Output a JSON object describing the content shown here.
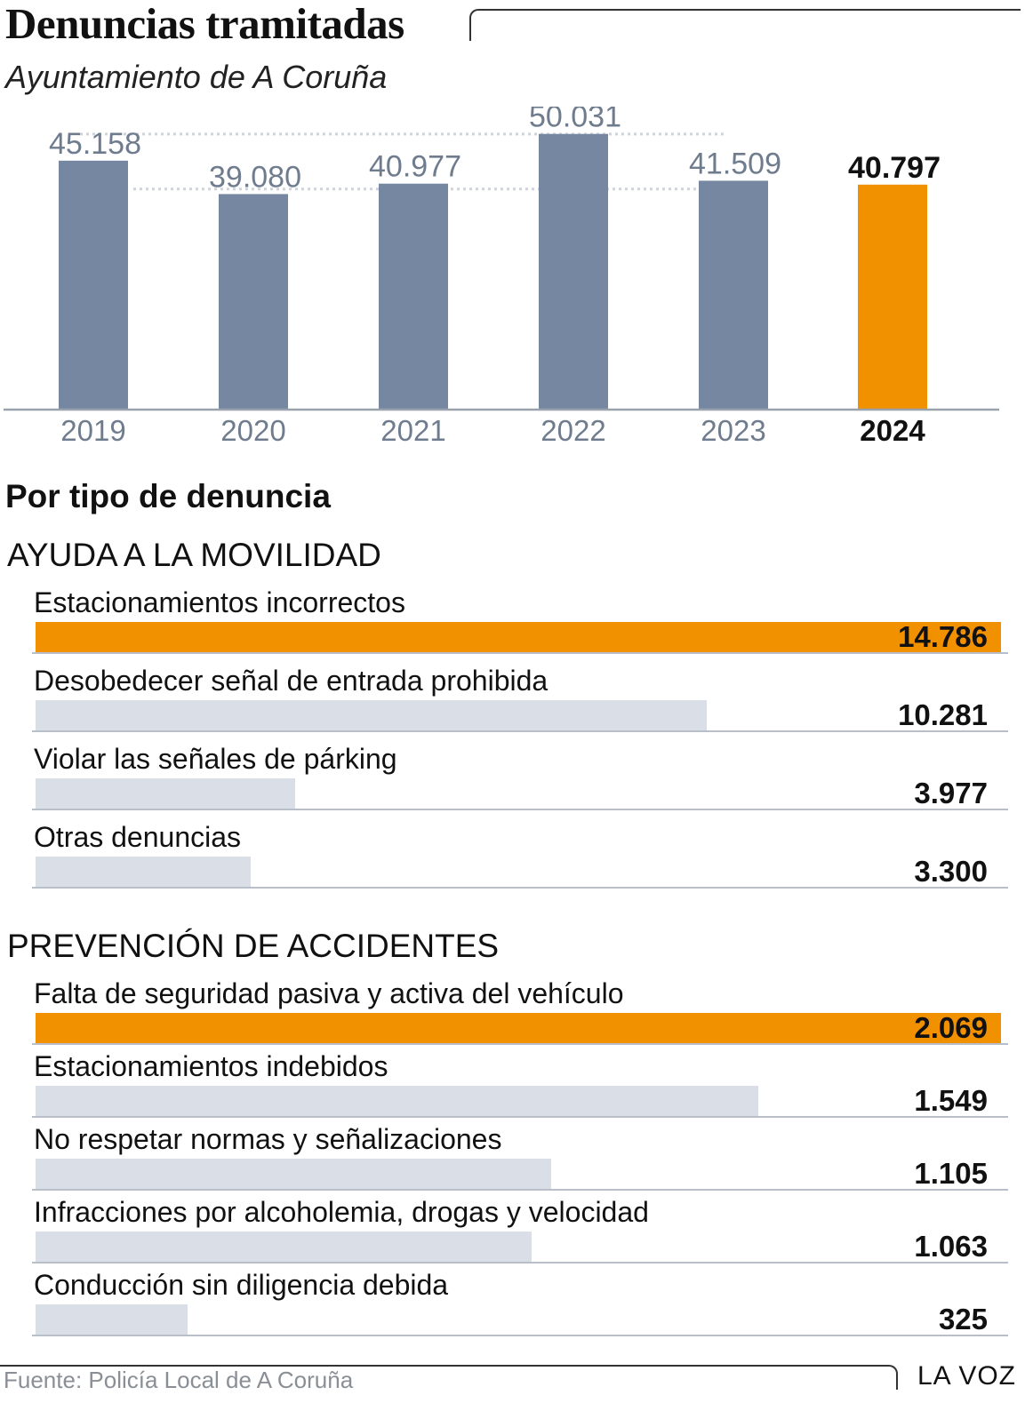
{
  "title": "Denuncias tramitadas",
  "subtitle": "Ayuntamiento de A Coruña",
  "colors": {
    "grey_bar": "#7688a1",
    "highlight": "#f29100",
    "light_bar": "#d9dee7"
  },
  "chart_data": {
    "type": "bar",
    "title": "Denuncias tramitadas",
    "subtitle": "Ayuntamiento de A Coruña",
    "categories": [
      "2019",
      "2020",
      "2021",
      "2022",
      "2023",
      "2024"
    ],
    "values": [
      45158,
      39080,
      40977,
      50031,
      41509,
      40797
    ],
    "value_labels": [
      "45.158",
      "39.080",
      "40.977",
      "50.031",
      "41.509",
      "40.797"
    ],
    "highlight": "2024",
    "ylim": [
      0,
      55000
    ]
  },
  "section_heading": "Por tipo de denuncia",
  "groups": [
    {
      "title": "AYUDA A LA MOVILIDAD",
      "max": 14786,
      "items": [
        {
          "label": "Estacionamientos incorrectos",
          "value": 14786,
          "display": "14.786",
          "highlight": true
        },
        {
          "label": "Desobedecer señal de entrada  prohibida",
          "value": 10281,
          "display": "10.281",
          "highlight": false
        },
        {
          "label": "Violar las señales de párking",
          "value": 3977,
          "display": "3.977",
          "highlight": false
        },
        {
          "label": "Otras denuncias",
          "value": 3300,
          "display": "3.300",
          "highlight": false
        }
      ]
    },
    {
      "title": "PREVENCIÓN DE ACCIDENTES",
      "max": 2069,
      "items": [
        {
          "label": "Falta de seguridad pasiva y activa del vehículo",
          "value": 2069,
          "display": "2.069",
          "highlight": true
        },
        {
          "label": "Estacionamientos indebidos",
          "value": 1549,
          "display": "1.549",
          "highlight": false
        },
        {
          "label": "No respetar normas y señalizaciones",
          "value": 1105,
          "display": "1.105",
          "highlight": false
        },
        {
          "label": "Infracciones por alcoholemia, drogas y velocidad",
          "value": 1063,
          "display": "1.063",
          "highlight": false
        },
        {
          "label": "Conducción sin diligencia debida",
          "value": 325,
          "display": "325",
          "highlight": false
        }
      ]
    }
  ],
  "source": "Fuente: Policía Local de A Coruña",
  "brand": "LA VOZ"
}
